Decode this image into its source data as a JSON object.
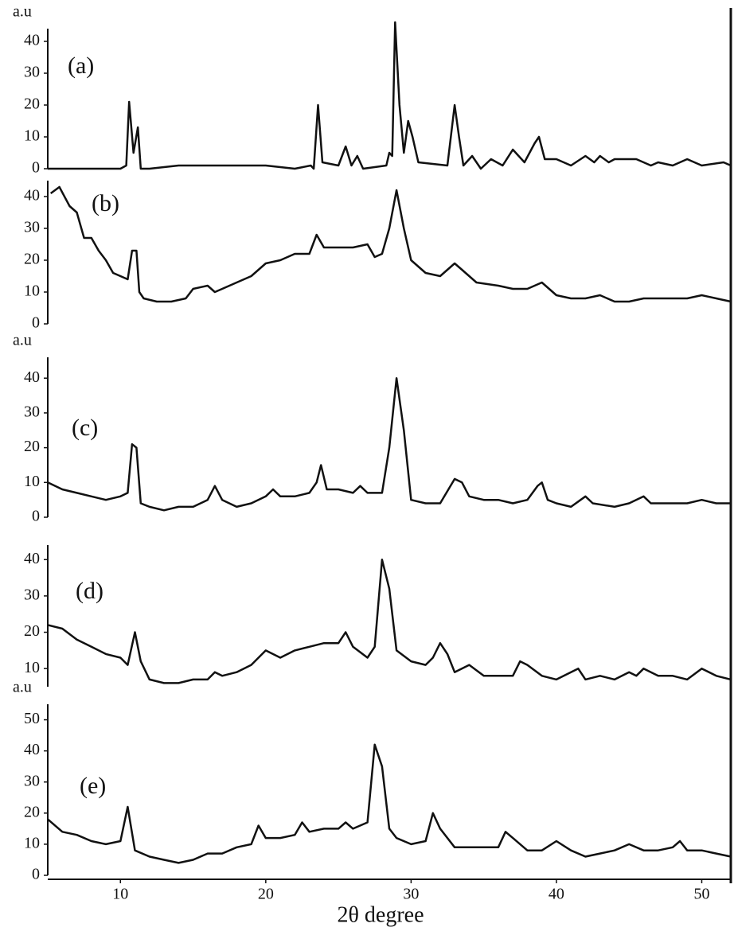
{
  "chart_data": [
    {
      "type": "line",
      "label": "(a)",
      "ylabel": "a.u",
      "color": "#111111",
      "xlim": [
        5,
        52
      ],
      "ylim": [
        0,
        44
      ],
      "yticks": [
        0,
        10,
        20,
        30,
        40
      ],
      "x": [
        5,
        8,
        10,
        10.4,
        10.6,
        10.9,
        11.2,
        11.4,
        12,
        14,
        16,
        18,
        20,
        22,
        23.1,
        23.3,
        23.6,
        23.9,
        25,
        25.5,
        25.9,
        26.3,
        26.7,
        28.3,
        28.5,
        28.7,
        28.9,
        29.2,
        29.5,
        29.8,
        30.1,
        30.5,
        32.5,
        33.0,
        33.3,
        33.6,
        34.2,
        34.8,
        35.5,
        36.3,
        37.0,
        37.8,
        38.5,
        38.8,
        39.2,
        40,
        41,
        42,
        42.6,
        43,
        43.6,
        44,
        45.5,
        46.5,
        47,
        48,
        49,
        50,
        51.5,
        52
      ],
      "values": [
        0,
        0,
        0,
        1,
        21,
        5,
        13,
        0,
        0,
        1,
        1,
        1,
        1,
        0,
        1,
        0,
        20,
        2,
        1,
        7,
        1,
        4,
        0,
        1,
        5,
        4,
        46,
        20,
        5,
        15,
        10,
        2,
        1,
        20,
        10,
        1,
        4,
        0,
        3,
        1,
        6,
        2,
        8,
        10,
        3,
        3,
        1,
        4,
        2,
        4,
        2,
        3,
        3,
        1,
        2,
        1,
        3,
        1,
        2,
        1
      ]
    },
    {
      "type": "line",
      "label": "(b)",
      "color": "#111111",
      "xlim": [
        5,
        52
      ],
      "ylim": [
        0,
        45
      ],
      "yticks": [
        0,
        10,
        20,
        30,
        40
      ],
      "x": [
        5.2,
        5.8,
        6.5,
        7.0,
        7.5,
        8.0,
        8.5,
        9.0,
        9.5,
        10,
        10.5,
        10.8,
        11.1,
        11.3,
        11.6,
        12.5,
        13.5,
        14.5,
        15,
        16,
        16.5,
        17,
        18,
        19,
        20,
        21,
        22,
        23,
        23.5,
        24,
        25,
        26,
        27,
        27.5,
        28,
        28.5,
        29,
        29.5,
        30,
        31,
        32,
        33,
        33.5,
        34.5,
        36,
        37,
        38,
        39,
        40,
        41,
        42,
        43,
        44,
        45,
        46,
        47,
        48,
        49,
        50,
        51,
        52
      ],
      "values": [
        41,
        43,
        37,
        35,
        27,
        27,
        23,
        20,
        16,
        15,
        14,
        23,
        23,
        10,
        8,
        7,
        7,
        8,
        11,
        12,
        10,
        11,
        13,
        15,
        19,
        20,
        22,
        22,
        28,
        24,
        24,
        24,
        25,
        21,
        22,
        30,
        42,
        30,
        20,
        16,
        15,
        19,
        17,
        13,
        12,
        11,
        11,
        13,
        9,
        8,
        8,
        9,
        7,
        7,
        8,
        8,
        8,
        8,
        9,
        8,
        7
      ]
    },
    {
      "type": "line",
      "label": "(c)",
      "ylabel": "a.u",
      "color": "#111111",
      "xlim": [
        5,
        52
      ],
      "ylim": [
        0,
        46
      ],
      "yticks": [
        0,
        10,
        20,
        30,
        40
      ],
      "x": [
        5,
        6,
        7,
        8,
        9,
        10,
        10.5,
        10.8,
        11.1,
        11.4,
        12,
        13,
        14,
        15,
        16,
        16.5,
        17,
        18,
        19,
        20,
        20.5,
        21,
        22,
        23,
        23.5,
        23.8,
        24.2,
        25,
        26,
        26.5,
        27,
        28,
        28.5,
        29,
        29.5,
        30,
        31,
        32,
        33,
        33.5,
        34,
        35,
        36,
        37,
        38,
        38.7,
        39,
        39.4,
        40,
        41,
        42,
        42.5,
        44,
        45,
        46,
        46.5,
        48,
        49,
        50,
        51,
        52
      ],
      "values": [
        10,
        8,
        7,
        6,
        5,
        6,
        7,
        21,
        20,
        4,
        3,
        2,
        3,
        3,
        5,
        9,
        5,
        3,
        4,
        6,
        8,
        6,
        6,
        7,
        10,
        15,
        8,
        8,
        7,
        9,
        7,
        7,
        20,
        40,
        25,
        5,
        4,
        4,
        11,
        10,
        6,
        5,
        5,
        4,
        5,
        9,
        10,
        5,
        4,
        3,
        6,
        4,
        3,
        4,
        6,
        4,
        4,
        4,
        5,
        4,
        4
      ]
    },
    {
      "type": "line",
      "label": "(d)",
      "color": "#111111",
      "xlim": [
        5,
        52
      ],
      "ylim": [
        5,
        44
      ],
      "yticks": [
        10,
        20,
        30,
        40
      ],
      "x": [
        5,
        6,
        7,
        8,
        9,
        10,
        10.5,
        11,
        11.4,
        12,
        13,
        14,
        15,
        16,
        16.5,
        17,
        18,
        19,
        20,
        21,
        22,
        23,
        24,
        25,
        25.5,
        26,
        27,
        27.5,
        28,
        28.5,
        29,
        30,
        31,
        31.5,
        32,
        32.5,
        33,
        34,
        35,
        36,
        37,
        37.5,
        38,
        39,
        40,
        41,
        41.5,
        42,
        43,
        44,
        45,
        45.5,
        46,
        47,
        48,
        49,
        50,
        51,
        52
      ],
      "values": [
        22,
        21,
        18,
        16,
        14,
        13,
        11,
        20,
        12,
        7,
        6,
        6,
        7,
        7,
        9,
        8,
        9,
        11,
        15,
        13,
        15,
        16,
        17,
        17,
        20,
        16,
        13,
        16,
        40,
        32,
        15,
        12,
        11,
        13,
        17,
        14,
        9,
        11,
        8,
        8,
        8,
        12,
        11,
        8,
        7,
        9,
        10,
        7,
        8,
        7,
        9,
        8,
        10,
        8,
        8,
        7,
        10,
        8,
        7
      ]
    },
    {
      "type": "line",
      "label": "(e)",
      "ylabel": "a.u",
      "xlabel": "2θ degree",
      "color": "#111111",
      "xlim": [
        5,
        52
      ],
      "ylim": [
        0,
        55
      ],
      "yticks": [
        0,
        10,
        20,
        30,
        40,
        50
      ],
      "xticks": [
        10,
        20,
        30,
        40,
        50
      ],
      "x": [
        5,
        6,
        7,
        8,
        9,
        10,
        10.5,
        11,
        12,
        13,
        14,
        15,
        16,
        17,
        18,
        19,
        19.5,
        20,
        21,
        22,
        22.5,
        23,
        24,
        25,
        25.5,
        26,
        27,
        27.5,
        28,
        28.5,
        29,
        30,
        31,
        31.5,
        32,
        33,
        34,
        35,
        36,
        36.5,
        37,
        38,
        39,
        40,
        41,
        42,
        43,
        44,
        45,
        46,
        47,
        48,
        48.5,
        49,
        50,
        51,
        52
      ],
      "values": [
        18,
        14,
        13,
        11,
        10,
        11,
        22,
        8,
        6,
        5,
        4,
        5,
        7,
        7,
        9,
        10,
        16,
        12,
        12,
        13,
        17,
        14,
        15,
        15,
        17,
        15,
        17,
        42,
        35,
        15,
        12,
        10,
        11,
        20,
        15,
        9,
        9,
        9,
        9,
        14,
        12,
        8,
        8,
        11,
        8,
        6,
        7,
        8,
        10,
        8,
        8,
        9,
        11,
        8,
        8,
        7,
        6
      ]
    }
  ]
}
